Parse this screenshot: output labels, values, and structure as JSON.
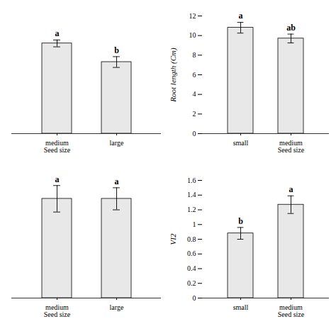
{
  "chart_data": [
    {
      "type": "bar",
      "categories": [
        "medium\nSeed size",
        "large"
      ],
      "values": [
        9.2,
        7.3
      ],
      "errors": [
        0.35,
        0.55
      ],
      "letters": [
        "a",
        "b"
      ],
      "color": "#e8e8e8",
      "ylim": [
        0,
        12
      ],
      "tick_labels": "x"
    },
    {
      "type": "bar",
      "ylabel": "Root length (Cm)",
      "categories": [
        "small",
        "medium\nSeed size"
      ],
      "values": [
        10.8,
        9.7
      ],
      "errors": [
        0.55,
        0.45
      ],
      "letters": [
        "a",
        "ab"
      ],
      "color": "#e8e8e8",
      "ylim": [
        0,
        12
      ],
      "yticks": [
        0,
        2,
        4,
        6,
        8,
        10,
        12
      ]
    },
    {
      "type": "bar",
      "categories": [
        "medium\nSeed size",
        "large"
      ],
      "values": [
        1.35,
        1.35
      ],
      "errors": [
        0.18,
        0.15
      ],
      "letters": [
        "a",
        "a"
      ],
      "color": "#e8e8e8",
      "ylim": [
        0,
        1.6
      ],
      "tick_labels": "x"
    },
    {
      "type": "bar",
      "ylabel": "VI2",
      "categories": [
        "small",
        "medium\nSeed size"
      ],
      "values": [
        0.88,
        1.27
      ],
      "errors": [
        0.08,
        0.12
      ],
      "letters": [
        "b",
        "a"
      ],
      "color": "#e8e8e8",
      "ylim": [
        0,
        1.6
      ],
      "yticks": [
        0,
        0.2,
        0.4,
        0.6,
        0.8,
        1.0,
        1.2,
        1.4,
        1.6
      ]
    }
  ]
}
